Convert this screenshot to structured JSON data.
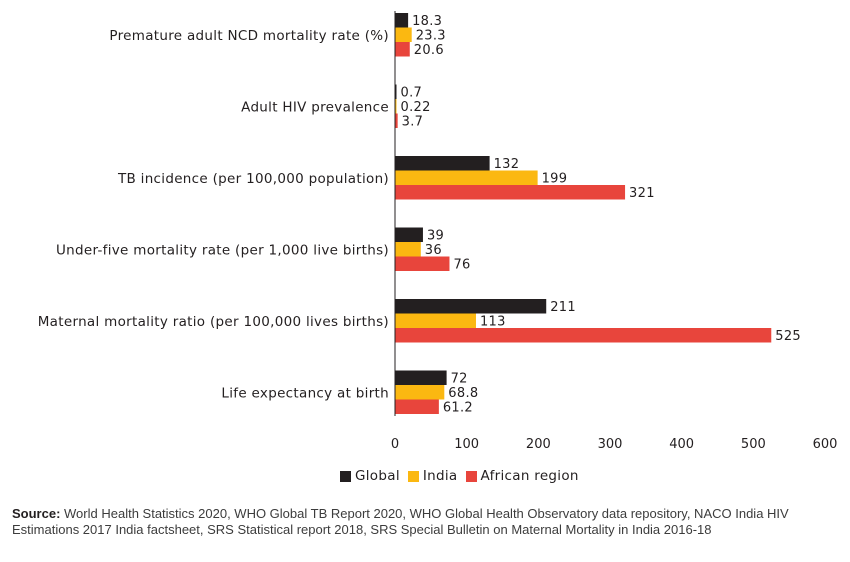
{
  "chart_data": {
    "type": "bar",
    "orientation": "horizontal",
    "categories": [
      "Premature adult NCD mortality rate (%)",
      "Adult HIV prevalence",
      "TB incidence (per 100,000 population)",
      "Under-five mortality rate (per 1,000 live births)",
      "Maternal mortality ratio (per 100,000 lives births)",
      "Life expectancy at birth"
    ],
    "series": [
      {
        "name": "Global",
        "color": "#231f20",
        "values": [
          18.3,
          0.7,
          132,
          39,
          211,
          72
        ],
        "labels": [
          "18.3",
          "0.7",
          "132",
          "39",
          "211",
          "72"
        ]
      },
      {
        "name": "India",
        "color": "#fbb811",
        "values": [
          23.3,
          0.22,
          199,
          36,
          113,
          68.8
        ],
        "labels": [
          "23.3",
          "0.22",
          "199",
          "36",
          "113",
          "68.8"
        ]
      },
      {
        "name": "African region",
        "color": "#e8453c",
        "values": [
          20.6,
          3.7,
          321,
          76,
          525,
          61.2
        ],
        "labels": [
          "20.6",
          "3.7",
          "321",
          "76",
          "525",
          "61.2"
        ]
      }
    ],
    "xlim": [
      0,
      600
    ],
    "xticks": [
      "0",
      "100",
      "200",
      "300",
      "400",
      "500",
      "600"
    ],
    "grid": false,
    "legend_position": "bottom"
  },
  "source": {
    "prefix": "Source:",
    "text": " World Health Statistics 2020, WHO Global TB Report 2020, WHO Global Health Observatory data repository, NACO India HIV Estimations 2017 India factsheet, SRS Statistical report 2018, SRS Special Bulletin on Maternal Mortality in India 2016-18"
  }
}
